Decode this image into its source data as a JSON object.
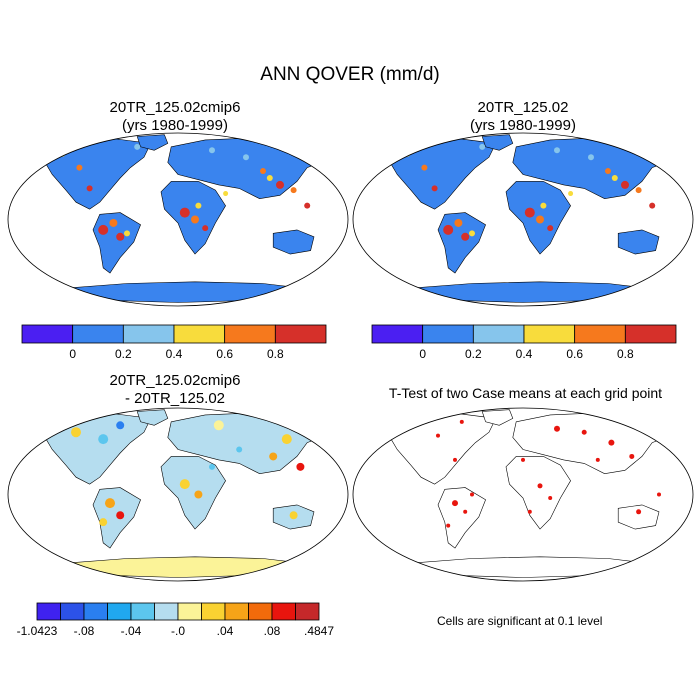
{
  "title": "ANN QOVER (mm/d)",
  "panels": [
    {
      "id": "case1",
      "title_line1": "20TR_125.02cmip6",
      "title_line2": "(yrs 1980-1999)",
      "colorbar": {
        "colors": [
          "#4b1ff2",
          "#3a84ee",
          "#86c5ec",
          "#f8dc3c",
          "#f6791d",
          "#d6302a"
        ],
        "labels": [
          "0",
          "0.2",
          "0.4",
          "0.6",
          "0.8"
        ]
      }
    },
    {
      "id": "case2",
      "title_line1": "20TR_125.02",
      "title_line2": "(yrs 1980-1999)",
      "colorbar": {
        "colors": [
          "#4b1ff2",
          "#3a84ee",
          "#86c5ec",
          "#f8dc3c",
          "#f6791d",
          "#d6302a"
        ],
        "labels": [
          "0",
          "0.2",
          "0.4",
          "0.6",
          "0.8"
        ]
      }
    },
    {
      "id": "diff",
      "title_line1": "20TR_125.02cmip6",
      "title_line2": "- 20TR_125.02",
      "colorbar": {
        "colors": [
          "#3f22f0",
          "#2c52e8",
          "#2a7ff0",
          "#20a8ef",
          "#5cc6ee",
          "#b5ddef",
          "#fbf398",
          "#f9d232",
          "#f6a418",
          "#f26b0b",
          "#e8150e",
          "#c5282a"
        ],
        "labels": [
          "-1.0423",
          "-.08",
          "-.04",
          "-.0",
          ".04",
          ".08",
          ".4847"
        ]
      }
    },
    {
      "id": "ttest",
      "title_line1": "T-Test of two Case means at each grid point",
      "note": "Cells are significant at 0.1 level"
    }
  ]
}
